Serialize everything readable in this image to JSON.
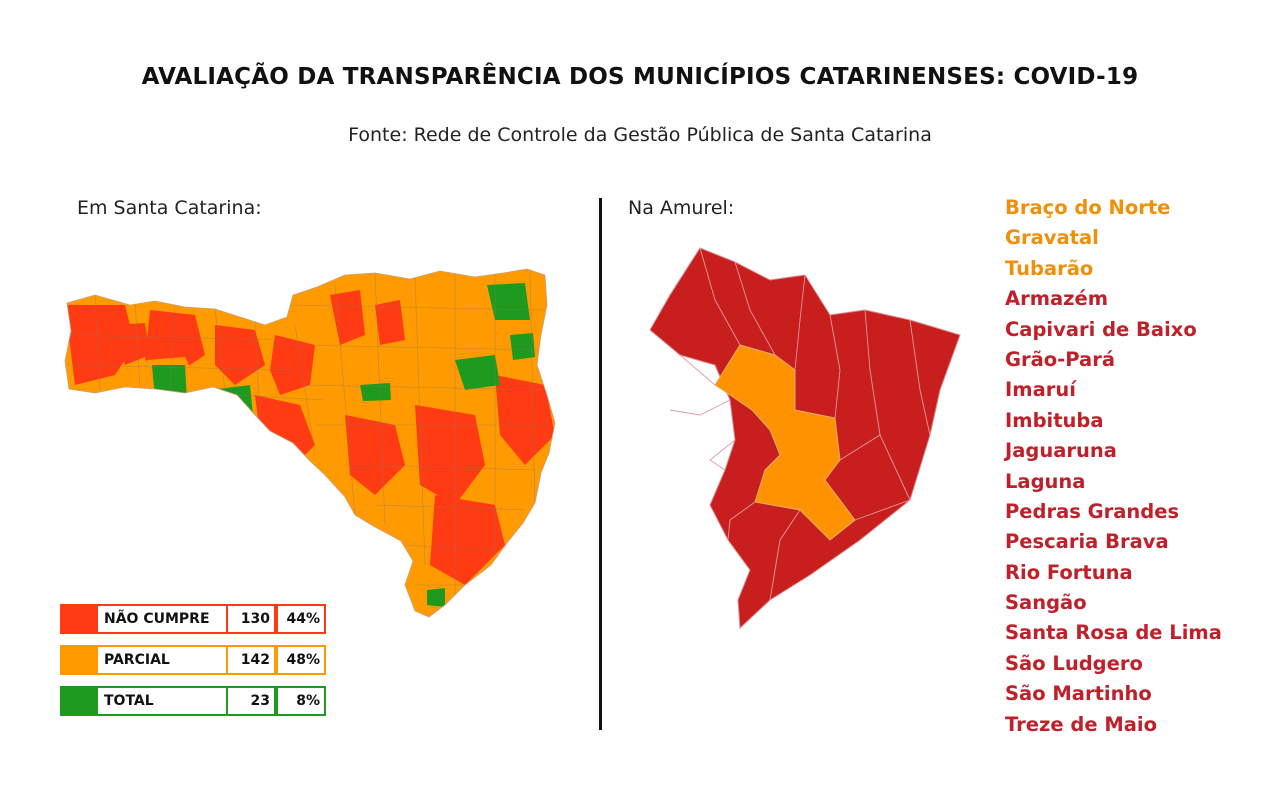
{
  "title": "AVALIAÇÃO DA TRANSPARÊNCIA DOS MUNICÍPIOS CATARINENSES: COVID-19",
  "subtitle": "Fonte: Rede de Controle da Gestão Pública de Santa Catarina",
  "left_panel": {
    "label": "Em Santa Catarina:"
  },
  "right_panel": {
    "label": "Na Amurel:"
  },
  "colors": {
    "nao_cumpre": "#ff3b14",
    "parcial": "#ff9a00",
    "total": "#1e9a1e",
    "amurel_nao_cumpre": "#c81e1e",
    "amurel_parcial": "#ff9200",
    "list_parcial": "#f0900a",
    "list_nao_cumpre": "#c0202a"
  },
  "legend": [
    {
      "label": "NÃO CUMPRE",
      "count": "130",
      "percent": "44%",
      "color": "#ff3b14"
    },
    {
      "label": "PARCIAL",
      "count": "142",
      "percent": "48%",
      "color": "#ff9a00"
    },
    {
      "label": "TOTAL",
      "count": "23",
      "percent": "8%",
      "color": "#1e9a1e"
    }
  ],
  "amurel_municipalities": [
    {
      "name": "Braço do Norte",
      "status": "parcial"
    },
    {
      "name": "Gravatal",
      "status": "parcial"
    },
    {
      "name": "Tubarão",
      "status": "parcial"
    },
    {
      "name": "Armazém",
      "status": "nao_cumpre"
    },
    {
      "name": "Capivari de Baixo",
      "status": "nao_cumpre"
    },
    {
      "name": "Grão-Pará",
      "status": "nao_cumpre"
    },
    {
      "name": "Imaruí",
      "status": "nao_cumpre"
    },
    {
      "name": "Imbituba",
      "status": "nao_cumpre"
    },
    {
      "name": "Jaguaruna",
      "status": "nao_cumpre"
    },
    {
      "name": "Laguna",
      "status": "nao_cumpre"
    },
    {
      "name": "Pedras Grandes",
      "status": "nao_cumpre"
    },
    {
      "name": "Pescaria Brava",
      "status": "nao_cumpre"
    },
    {
      "name": "Rio Fortuna",
      "status": "nao_cumpre"
    },
    {
      "name": "Sangão",
      "status": "nao_cumpre"
    },
    {
      "name": "Santa Rosa de Lima",
      "status": "nao_cumpre"
    },
    {
      "name": "São Ludgero",
      "status": "nao_cumpre"
    },
    {
      "name": "São Martinho",
      "status": "nao_cumpre"
    },
    {
      "name": "Treze de Maio",
      "status": "nao_cumpre"
    }
  ]
}
